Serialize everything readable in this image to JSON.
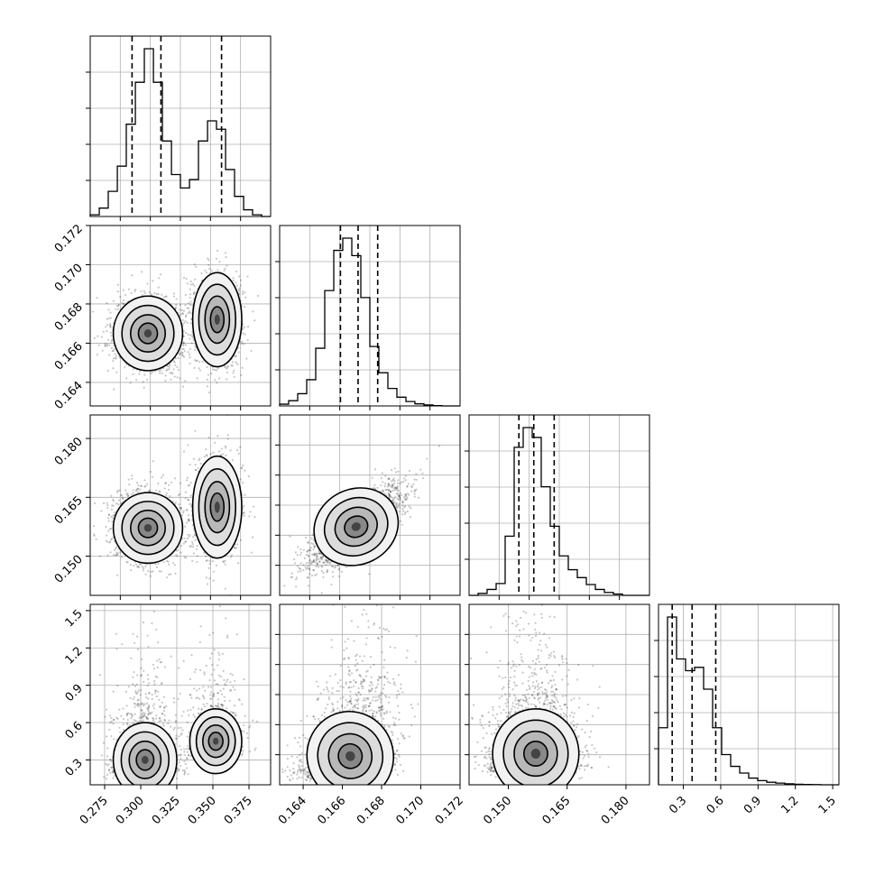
{
  "figure": {
    "type": "corner-plot",
    "background": "#ffffff",
    "axis_color": "#000000",
    "grid_color": "#b0b0b0",
    "point_color": "#000000",
    "contour_color": "#000000",
    "quantile_line_style": "dashed",
    "grid": true
  },
  "chart_data": [
    {
      "id": "hist-p1",
      "type": "histogram",
      "row": 0,
      "col": 0,
      "x_range": [
        0.265,
        0.39
      ],
      "bin_edges": [
        0.265,
        0.2713,
        0.2775,
        0.2838,
        0.29,
        0.2963,
        0.3025,
        0.3088,
        0.315,
        0.3213,
        0.3275,
        0.3338,
        0.34,
        0.3463,
        0.3525,
        0.3588,
        0.365,
        0.3713,
        0.3775,
        0.3838,
        0.39
      ],
      "counts": [
        0.01,
        0.05,
        0.15,
        0.3,
        0.55,
        0.8,
        1.0,
        0.8,
        0.45,
        0.25,
        0.17,
        0.22,
        0.45,
        0.57,
        0.52,
        0.28,
        0.12,
        0.04,
        0.01,
        0.0
      ],
      "quantiles": [
        0.294,
        0.314,
        0.356
      ],
      "x_ticks": [],
      "y_ticks": []
    },
    {
      "id": "hist-p2",
      "type": "histogram",
      "row": 1,
      "col": 1,
      "x_range": [
        0.1628,
        0.172
      ],
      "bin_edges": [
        0.1628,
        0.16326,
        0.16372,
        0.16418,
        0.16464,
        0.1651,
        0.16556,
        0.16602,
        0.16648,
        0.16694,
        0.1674,
        0.16786,
        0.16832,
        0.16878,
        0.16924,
        0.1697,
        0.17016,
        0.17062,
        0.17108,
        0.17154,
        0.172
      ],
      "counts": [
        0.01,
        0.03,
        0.07,
        0.15,
        0.33,
        0.66,
        0.89,
        0.96,
        0.86,
        0.62,
        0.34,
        0.19,
        0.1,
        0.05,
        0.025,
        0.012,
        0.006,
        0.002,
        0.0,
        0.0
      ],
      "quantiles": [
        0.1659,
        0.1668,
        0.1678
      ],
      "x_ticks": [],
      "y_ticks": []
    },
    {
      "id": "hist-p3",
      "type": "histogram",
      "row": 2,
      "col": 2,
      "x_range": [
        0.14,
        0.186
      ],
      "bin_edges": [
        0.14,
        0.1423,
        0.1446,
        0.1469,
        0.1492,
        0.1515,
        0.1538,
        0.1561,
        0.1584,
        0.1607,
        0.163,
        0.1653,
        0.1676,
        0.1699,
        0.1722,
        0.1745,
        0.1768,
        0.1791,
        0.1814,
        0.1837,
        0.186
      ],
      "counts": [
        0.0,
        0.01,
        0.03,
        0.06,
        0.3,
        0.75,
        0.85,
        0.8,
        0.55,
        0.35,
        0.2,
        0.13,
        0.09,
        0.055,
        0.03,
        0.015,
        0.007,
        0.0,
        0.0,
        0.0
      ],
      "quantiles": [
        0.1527,
        0.1565,
        0.1617
      ],
      "x_ticks": [],
      "y_ticks": []
    },
    {
      "id": "hist-p4",
      "type": "histogram",
      "row": 3,
      "col": 3,
      "x_range": [
        0.1,
        1.55
      ],
      "bin_edges": [
        0.1,
        0.1725,
        0.245,
        0.3175,
        0.39,
        0.4625,
        0.535,
        0.6075,
        0.68,
        0.7525,
        0.825,
        0.8975,
        0.97,
        1.0425,
        1.115,
        1.1875,
        1.26,
        1.3325,
        1.405,
        1.4775,
        1.55
      ],
      "counts": [
        0.34,
        1.0,
        0.75,
        0.68,
        0.7,
        0.57,
        0.34,
        0.18,
        0.11,
        0.07,
        0.04,
        0.025,
        0.015,
        0.01,
        0.006,
        0.003,
        0.002,
        0.001,
        0.0,
        0.0
      ],
      "quantiles": [
        0.21,
        0.37,
        0.56
      ],
      "x_ticks": [
        "0.3",
        "0.6",
        "0.9",
        "1.2",
        "1.5"
      ],
      "x_tick_values": [
        0.3,
        0.6,
        0.9,
        1.2,
        1.5
      ],
      "y_ticks": []
    },
    {
      "id": "scatter-p1-p2",
      "type": "scatter-density",
      "row": 1,
      "col": 0,
      "x_range": [
        0.265,
        0.39
      ],
      "y_range": [
        0.1628,
        0.172
      ],
      "modes": [
        {
          "x": 0.305,
          "y": 0.1665,
          "sx": 0.012,
          "sy": 0.00095,
          "weight": 0.62
        },
        {
          "x": 0.353,
          "y": 0.1672,
          "sx": 0.0085,
          "sy": 0.0012,
          "weight": 0.38
        }
      ],
      "y_ticks": [
        "0.164",
        "0.166",
        "0.168",
        "0.170",
        "0.172"
      ],
      "y_tick_values": [
        0.164,
        0.166,
        0.168,
        0.17,
        0.172
      ],
      "x_ticks": []
    },
    {
      "id": "scatter-p1-p3",
      "type": "scatter-density",
      "row": 2,
      "col": 0,
      "x_range": [
        0.265,
        0.39
      ],
      "y_range": [
        0.14,
        0.186
      ],
      "modes": [
        {
          "x": 0.305,
          "y": 0.1572,
          "sx": 0.012,
          "sy": 0.0045,
          "weight": 0.62
        },
        {
          "x": 0.353,
          "y": 0.1625,
          "sx": 0.0085,
          "sy": 0.0065,
          "weight": 0.38
        }
      ],
      "y_ticks": [
        "0.150",
        "0.165",
        "0.180"
      ],
      "y_tick_values": [
        0.15,
        0.165,
        0.18
      ],
      "x_ticks": []
    },
    {
      "id": "scatter-p2-p3",
      "type": "scatter-density",
      "row": 2,
      "col": 1,
      "x_range": [
        0.1628,
        0.172
      ],
      "y_range": [
        0.14,
        0.186
      ],
      "modes": [
        {
          "x": 0.1667,
          "y": 0.1575,
          "sx": 0.0011,
          "sy": 0.0048,
          "rho": 0.75,
          "weight": 1.0
        }
      ],
      "x_ticks": [],
      "y_ticks": []
    },
    {
      "id": "scatter-p1-p4",
      "type": "scatter-density",
      "row": 3,
      "col": 0,
      "x_range": [
        0.265,
        0.39
      ],
      "y_range": [
        0.1,
        1.55
      ],
      "modes": [
        {
          "x": 0.303,
          "y": 0.3,
          "sx": 0.011,
          "sy": 0.15,
          "weight": 0.6
        },
        {
          "x": 0.352,
          "y": 0.45,
          "sx": 0.009,
          "sy": 0.13,
          "weight": 0.4
        }
      ],
      "x_ticks": [
        "0.275",
        "0.300",
        "0.325",
        "0.350",
        "0.375"
      ],
      "x_tick_values": [
        0.275,
        0.3,
        0.325,
        0.35,
        0.375
      ],
      "y_ticks": [
        "0.3",
        "0.6",
        "0.9",
        "1.2",
        "1.5"
      ],
      "y_tick_values": [
        0.3,
        0.6,
        0.9,
        1.2,
        1.5
      ]
    },
    {
      "id": "scatter-p2-p4",
      "type": "scatter-density",
      "row": 3,
      "col": 1,
      "x_range": [
        0.1628,
        0.172
      ],
      "y_range": [
        0.1,
        1.55
      ],
      "modes": [
        {
          "x": 0.1664,
          "y": 0.33,
          "sx": 0.0011,
          "sy": 0.18,
          "rho": 0.35,
          "weight": 1.0
        }
      ],
      "x_ticks": [
        "0.164",
        "0.166",
        "0.168",
        "0.170",
        "0.172"
      ],
      "x_tick_values": [
        0.164,
        0.166,
        0.168,
        0.17,
        0.172
      ],
      "y_ticks": []
    },
    {
      "id": "scatter-p3-p4",
      "type": "scatter-density",
      "row": 3,
      "col": 2,
      "x_range": [
        0.14,
        0.186
      ],
      "y_range": [
        0.1,
        1.55
      ],
      "modes": [
        {
          "x": 0.157,
          "y": 0.35,
          "sx": 0.0055,
          "sy": 0.18,
          "weight": 1.0
        }
      ],
      "x_ticks": [
        "0.150",
        "0.165",
        "0.180"
      ],
      "x_tick_values": [
        0.15,
        0.165,
        0.18
      ],
      "y_ticks": []
    }
  ]
}
